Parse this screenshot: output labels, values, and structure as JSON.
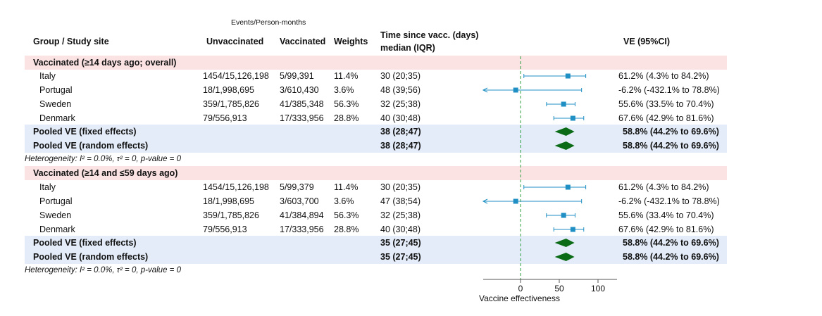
{
  "header": {
    "events_caption": "Events/Person-months",
    "group": "Group / Study site",
    "unvaccinated": "Unvaccinated",
    "vaccinated": "Vaccinated",
    "weights": "Weights",
    "time_line1": "Time since vacc. (days)",
    "time_line2": "median (IQR)",
    "ve": "VE (95%CI)"
  },
  "colors": {
    "section_band": "#fbe3e4",
    "pooled_band": "#e3ecf8",
    "study_marker": "#1f8fc4",
    "pooled_diamond": "#0b6b16",
    "reference_line": "#2e9e3e"
  },
  "chart_data": {
    "type": "forest",
    "xlabel": "Vaccine effectiveness",
    "xticks": [
      0,
      50,
      100
    ],
    "xlim": [
      -50,
      125
    ],
    "reference_line": 0,
    "sections": [
      {
        "title": "Vaccinated  (≥14 days ago; overall)",
        "studies": [
          {
            "site": "Italy",
            "unvaccinated": "1454/15,126,198",
            "vaccinated": "5/99,391",
            "weight": "11.4%",
            "time": "30 (20;35)",
            "ve": 61.2,
            "lo": 4.3,
            "hi": 84.2,
            "ve_text": "61.2% (4.3% to 84.2%)"
          },
          {
            "site": "Portugal",
            "unvaccinated": "18/1,998,695",
            "vaccinated": "3/610,430",
            "weight": "3.6%",
            "time": "48 (39;56)",
            "ve": -6.2,
            "lo": -432.1,
            "hi": 78.8,
            "ve_text": "-6.2% (-432.1% to 78.8%)"
          },
          {
            "site": "Sweden",
            "unvaccinated": "359/1,785,826",
            "vaccinated": "41/385,348",
            "weight": "56.3%",
            "time": "32 (25;38)",
            "ve": 55.6,
            "lo": 33.5,
            "hi": 70.4,
            "ve_text": "55.6% (33.5% to 70.4%)"
          },
          {
            "site": "Denmark",
            "unvaccinated": "79/556,913",
            "vaccinated": "17/333,956",
            "weight": "28.8%",
            "time": "40 (30;48)",
            "ve": 67.6,
            "lo": 42.9,
            "hi": 81.6,
            "ve_text": "67.6% (42.9% to 81.6%)"
          }
        ],
        "pooled": [
          {
            "label": "Pooled VE (fixed effects)",
            "time": "38 (28;47)",
            "ve": 58.8,
            "lo": 44.2,
            "hi": 69.6,
            "ve_text": "58.8% (44.2% to 69.6%)"
          },
          {
            "label": "Pooled VE (random effects)",
            "time": "38 (28;47)",
            "ve": 58.8,
            "lo": 44.2,
            "hi": 69.6,
            "ve_text": "58.8% (44.2% to 69.6%)"
          }
        ],
        "heterogeneity": "Heterogeneity: I² = 0.0%, τ² = 0, p-value = 0"
      },
      {
        "title": "Vaccinated  (≥14  and ≤59 days ago)",
        "studies": [
          {
            "site": "Italy",
            "unvaccinated": "1454/15,126,198",
            "vaccinated": "5/99,379",
            "weight": "11.4%",
            "time": "30 (20;35)",
            "ve": 61.2,
            "lo": 4.3,
            "hi": 84.2,
            "ve_text": "61.2% (4.3% to 84.2%)"
          },
          {
            "site": "Portugal",
            "unvaccinated": "18/1,998,695",
            "vaccinated": "3/603,700",
            "weight": "3.6%",
            "time": "47 (38;54)",
            "ve": -6.2,
            "lo": -432.1,
            "hi": 78.8,
            "ve_text": "-6.2% (-432.1% to 78.8%)"
          },
          {
            "site": "Sweden",
            "unvaccinated": "359/1,785,826",
            "vaccinated": "41/384,894",
            "weight": "56.3%",
            "time": "32 (25;38)",
            "ve": 55.6,
            "lo": 33.4,
            "hi": 70.4,
            "ve_text": "55.6% (33.4% to 70.4%)"
          },
          {
            "site": "Denmark",
            "unvaccinated": "79/556,913",
            "vaccinated": "17/333,956",
            "weight": "28.8%",
            "time": "40 (30;48)",
            "ve": 67.6,
            "lo": 42.9,
            "hi": 81.6,
            "ve_text": "67.6% (42.9% to 81.6%)"
          }
        ],
        "pooled": [
          {
            "label": "Pooled VE (fixed effects)",
            "time": "35 (27;45)",
            "ve": 58.8,
            "lo": 44.2,
            "hi": 69.6,
            "ve_text": "58.8% (44.2% to 69.6%)"
          },
          {
            "label": "Pooled VE (random effects)",
            "time": "35 (27;45)",
            "ve": 58.8,
            "lo": 44.2,
            "hi": 69.6,
            "ve_text": "58.8% (44.2% to 69.6%)"
          }
        ],
        "heterogeneity": "Heterogeneity: I² = 0.0%, τ² = 0, p-value = 0"
      }
    ]
  }
}
